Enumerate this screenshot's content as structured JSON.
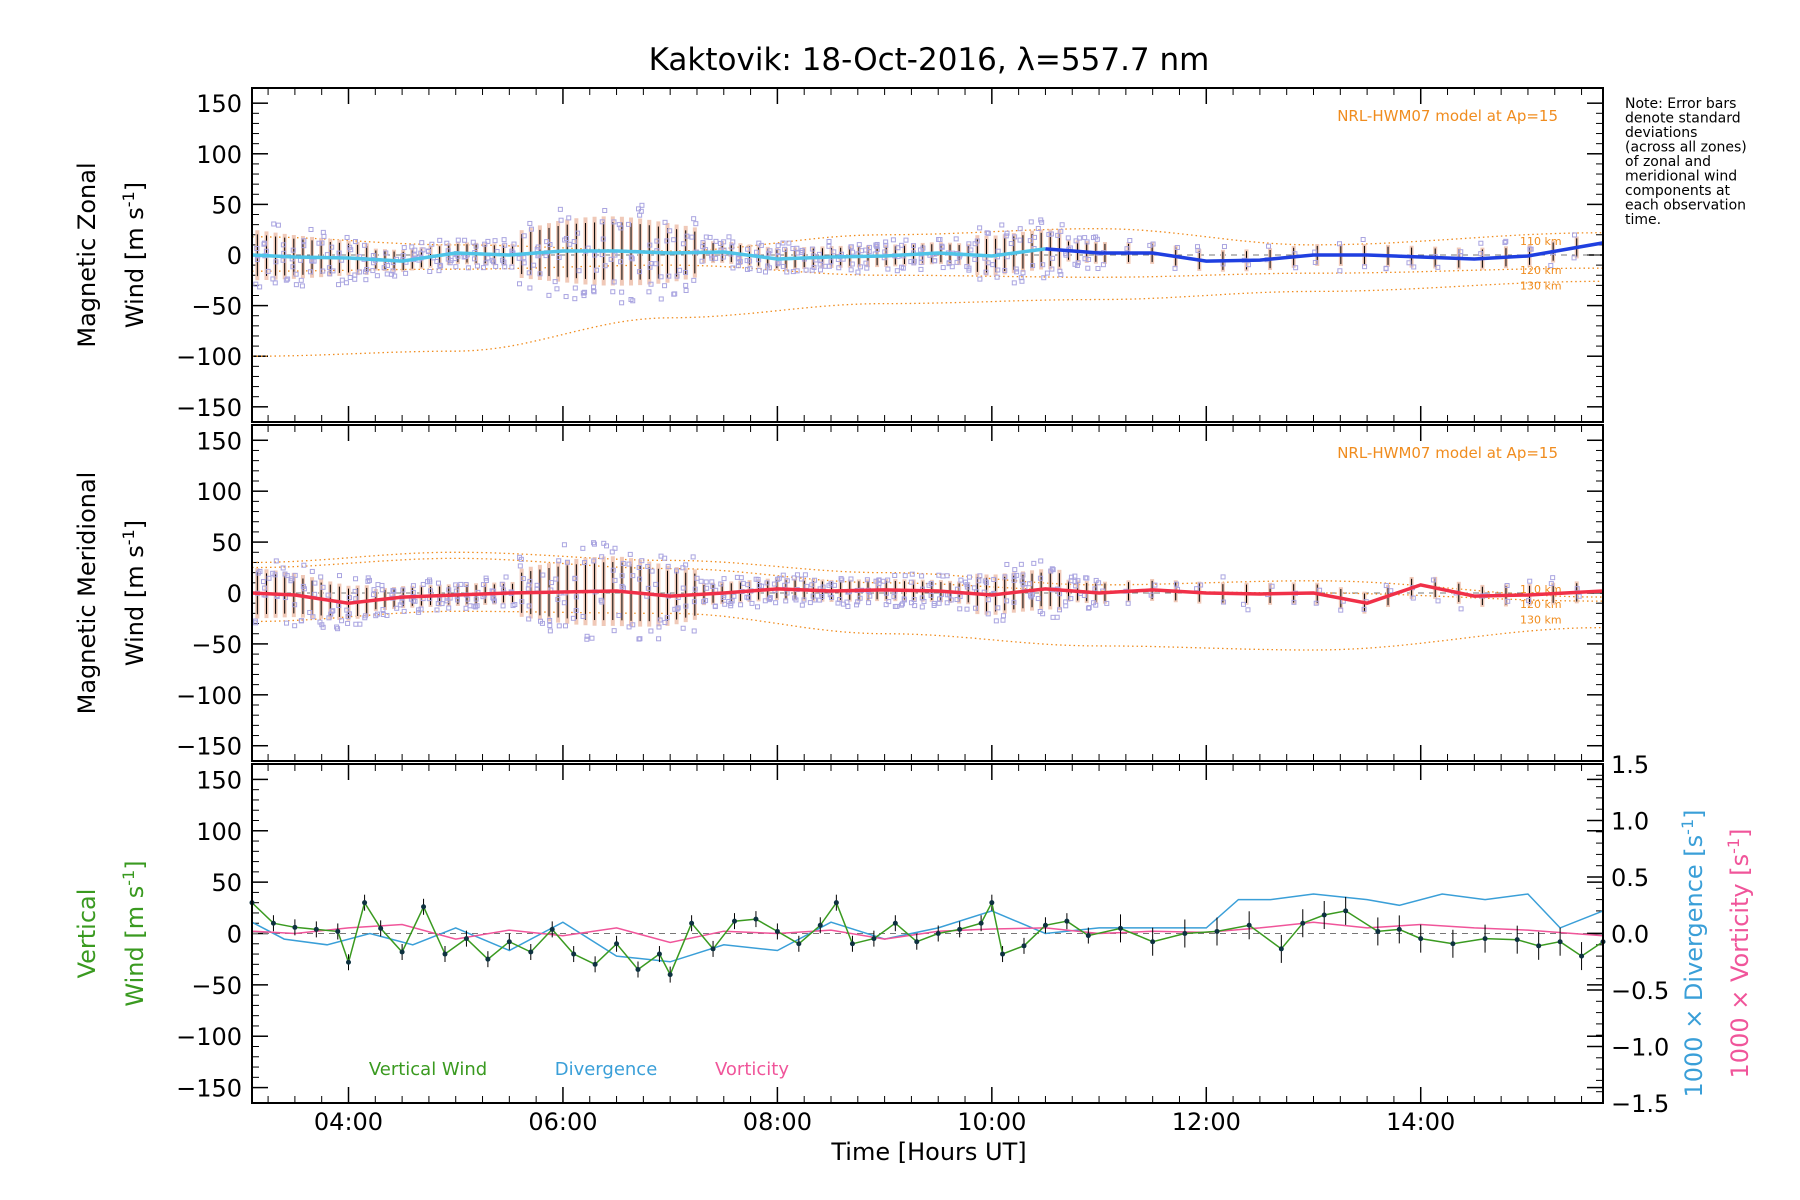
{
  "chart_data": {
    "type": "line",
    "title": "Kaktovik: 18-Oct-2016, λ=557.7 nm",
    "xlabel": "Time [Hours UT]",
    "x_range_hours": [
      3.1,
      15.7
    ],
    "x_ticks": [
      "04:00",
      "06:00",
      "08:00",
      "10:00",
      "12:00",
      "14:00"
    ],
    "note": [
      "Note: Error bars",
      "denote standard",
      "deviations",
      "(across all zones)",
      "of zonal and",
      "meridional wind",
      "components at",
      "each observation",
      "time."
    ],
    "colors": {
      "zonal": "#1f3fe0",
      "meridional": "#f03048",
      "vertical": "#3a9a20",
      "divergence": "#3a9fd8",
      "vorticity": "#f0559a",
      "model": "#f08c1e",
      "zone_points": "#a9a4e0",
      "error_bars": "#000000",
      "error_fill": "#f0c9b8",
      "zonal_light": "#4fc4e8",
      "vertical_dots": "#0e3240"
    },
    "panels": [
      {
        "name": "zonal",
        "ylabel_line1": "Magnetic Zonal",
        "ylabel_line2": "Wind [m s-1]",
        "yticks": [
          "150",
          "100",
          "50",
          "0",
          "−50",
          "−100",
          "−150"
        ],
        "ylim": [
          -165,
          165
        ],
        "model_label": "NRL-HWM07 model at Ap=15",
        "km_labels": [
          "110 km",
          "120 km",
          "130 km"
        ],
        "series": [
          {
            "name": "",
            "x": [
              3.1,
              3.5,
              4.0,
              4.5,
              5.0,
              5.5,
              6.0,
              6.5,
              7.0,
              7.5,
              8.0,
              8.5,
              9.0,
              9.5,
              10.0,
              10.5,
              11.0,
              11.5,
              12.0,
              12.5,
              13.0,
              13.5,
              14.0,
              14.5,
              15.0,
              15.7
            ],
            "values": [
              0,
              -2,
              -3,
              -6,
              2,
              0,
              4,
              4,
              2,
              3,
              -4,
              -2,
              -1,
              2,
              -1,
              6,
              2,
              2,
              -6,
              -5,
              0,
              0,
              -2,
              -4,
              -1,
              12
            ]
          }
        ],
        "model_curves": [
          {
            "x": [
              3.1,
              5.0,
              7.0,
              9.0,
              11.0,
              13.0,
              15.7
            ],
            "values": [
              18,
              10,
              4,
              20,
              26,
              10,
              22
            ]
          },
          {
            "x": [
              3.1,
              5.0,
              7.0,
              9.0,
              11.0,
              13.0,
              15.7
            ],
            "values": [
              -16,
              -14,
              -10,
              -20,
              -22,
              -18,
              -13
            ]
          },
          {
            "x": [
              3.1,
              5.0,
              7.0,
              9.0,
              11.0,
              13.0,
              15.7
            ],
            "values": [
              -100,
              -95,
              -62,
              -48,
              -44,
              -36,
              -26
            ]
          }
        ]
      },
      {
        "name": "meridional",
        "ylabel_line1": "Magnetic Meridional",
        "ylabel_line2": "Wind [m s-1]",
        "yticks": [
          "150",
          "100",
          "50",
          "0",
          "−50",
          "−100",
          "−150"
        ],
        "ylim": [
          -165,
          165
        ],
        "model_label": "NRL-HWM07 model at Ap=15",
        "km_labels": [
          "110 km",
          "120 km",
          "130 km"
        ],
        "series": [
          {
            "name": "",
            "x": [
              3.1,
              3.5,
              4.0,
              4.5,
              5.0,
              5.5,
              6.0,
              6.5,
              7.0,
              7.5,
              8.0,
              8.5,
              9.0,
              9.5,
              10.0,
              10.5,
              11.0,
              11.5,
              12.0,
              12.5,
              13.0,
              13.5,
              14.0,
              14.5,
              15.0,
              15.7
            ],
            "values": [
              0,
              -2,
              -10,
              -4,
              -2,
              0,
              1,
              2,
              -3,
              0,
              4,
              2,
              3,
              2,
              -2,
              4,
              0,
              3,
              0,
              -1,
              0,
              -10,
              8,
              -3,
              -2,
              2
            ]
          }
        ],
        "model_curves": [
          {
            "x": [
              3.1,
              5.0,
              7.0,
              9.0,
              11.0,
              13.0,
              15.7
            ],
            "values": [
              30,
              40,
              32,
              20,
              8,
              12,
              -4
            ]
          },
          {
            "x": [
              3.1,
              5.0,
              7.0,
              9.0,
              11.0,
              13.0,
              15.7
            ],
            "values": [
              25,
              34,
              24,
              10,
              2,
              0,
              -8
            ]
          },
          {
            "x": [
              3.1,
              5.0,
              7.0,
              9.0,
              11.0,
              13.0,
              15.7
            ],
            "values": [
              -28,
              -18,
              -20,
              -40,
              -52,
              -56,
              -34
            ]
          }
        ]
      },
      {
        "name": "vertical",
        "ylabel_line1": "Vertical",
        "ylabel_line2": "Wind [m s-1]",
        "yticks": [
          "150",
          "100",
          "50",
          "0",
          "−50",
          "−100",
          "−150"
        ],
        "ylim": [
          -165,
          165
        ],
        "y2_label_div": "1000 × Divergence [s-1]",
        "y2_label_vort": "1000 × Vorticity [s-1]",
        "y2ticks": [
          "1.5",
          "1.0",
          "0.5",
          "0.0",
          "−0.5",
          "−1.0",
          "−1.5"
        ],
        "y2lim": [
          -1.5,
          1.5
        ],
        "legend": [
          "Vertical Wind",
          "Divergence",
          "Vorticity"
        ],
        "series": [
          {
            "name": "Vertical Wind",
            "x": [
              3.1,
              3.3,
              3.5,
              3.7,
              3.9,
              4.0,
              4.15,
              4.3,
              4.5,
              4.7,
              4.9,
              5.1,
              5.3,
              5.5,
              5.7,
              5.9,
              6.1,
              6.3,
              6.5,
              6.7,
              6.9,
              7.0,
              7.2,
              7.4,
              7.6,
              7.8,
              8.0,
              8.2,
              8.4,
              8.55,
              8.7,
              8.9,
              9.1,
              9.3,
              9.5,
              9.7,
              9.9,
              10.0,
              10.1,
              10.3,
              10.5,
              10.7,
              10.9,
              11.2,
              11.5,
              11.8,
              12.1,
              12.4,
              12.7,
              12.9,
              13.1,
              13.3,
              13.6,
              13.8,
              14.0,
              14.3,
              14.6,
              14.9,
              15.1,
              15.3,
              15.5,
              15.7
            ],
            "values": [
              30,
              10,
              6,
              4,
              2,
              -28,
              30,
              5,
              -18,
              26,
              -20,
              -5,
              -25,
              -8,
              -18,
              4,
              -20,
              -30,
              -10,
              -35,
              -20,
              -40,
              10,
              -15,
              12,
              14,
              2,
              -10,
              8,
              30,
              -10,
              -5,
              10,
              -8,
              0,
              4,
              10,
              30,
              -20,
              -12,
              8,
              12,
              -2,
              5,
              -8,
              0,
              2,
              8,
              -15,
              10,
              18,
              22,
              2,
              4,
              -5,
              -10,
              -5,
              -6,
              -12,
              -8,
              -22,
              -8
            ]
          },
          {
            "name": "Divergence",
            "x": [
              3.1,
              3.4,
              3.8,
              4.2,
              4.6,
              5.0,
              5.5,
              6.0,
              6.5,
              7.0,
              7.5,
              8.0,
              8.5,
              9.0,
              9.5,
              10.0,
              10.5,
              11.0,
              11.5,
              12.0,
              12.3,
              12.6,
              13.0,
              13.5,
              13.8,
              14.2,
              14.6,
              15.0,
              15.3,
              15.7
            ],
            "values": [
              0.1,
              -0.05,
              -0.1,
              0.0,
              -0.1,
              0.05,
              -0.15,
              0.1,
              -0.2,
              -0.25,
              -0.1,
              -0.15,
              0.1,
              -0.05,
              0.05,
              0.2,
              0.0,
              0.05,
              0.05,
              0.05,
              0.3,
              0.3,
              0.35,
              0.3,
              0.25,
              0.35,
              0.3,
              0.35,
              0.05,
              0.2
            ]
          },
          {
            "name": "Vorticity",
            "x": [
              3.1,
              3.5,
              4.0,
              4.5,
              5.0,
              5.5,
              6.0,
              6.5,
              7.0,
              7.5,
              8.0,
              8.5,
              9.0,
              9.5,
              10.0,
              10.5,
              11.0,
              11.5,
              12.0,
              12.5,
              13.0,
              13.5,
              14.0,
              14.5,
              15.0,
              15.7
            ],
            "values": [
              0.02,
              0.0,
              0.05,
              0.08,
              -0.05,
              0.03,
              -0.02,
              0.05,
              -0.08,
              0.02,
              0.0,
              0.03,
              -0.05,
              0.02,
              0.04,
              0.05,
              0.0,
              0.02,
              0.01,
              0.05,
              0.1,
              0.05,
              0.08,
              0.05,
              0.03,
              -0.02
            ]
          }
        ]
      }
    ]
  }
}
